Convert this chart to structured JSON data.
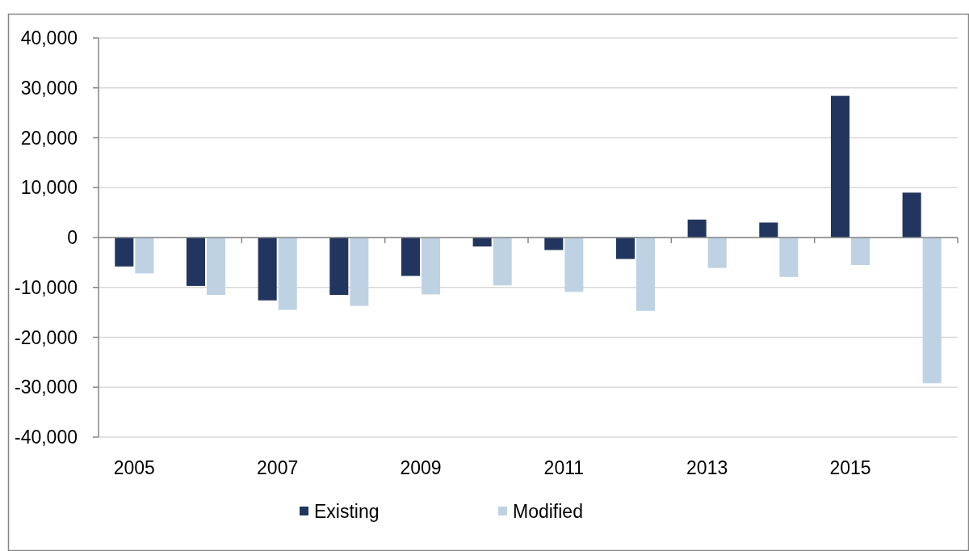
{
  "chart_data": {
    "type": "bar",
    "categories": [
      "2005",
      null,
      "2007",
      null,
      "2009",
      null,
      "2011",
      null,
      "2013",
      null,
      "2015",
      null
    ],
    "series": [
      {
        "name": "Existing",
        "color": "#21355e",
        "values": [
          -5800,
          -9700,
          -12600,
          -11500,
          -7700,
          -1800,
          -2500,
          -4300,
          3600,
          3000,
          28400,
          9000
        ]
      },
      {
        "name": "Modified",
        "color": "#bed2e4",
        "values": [
          -7200,
          -11500,
          -14500,
          -13700,
          -11400,
          -9600,
          -10900,
          -14700,
          -6100,
          -7900,
          -5500,
          -29200
        ]
      }
    ],
    "ylim": [
      -40000,
      40000
    ],
    "yticks": [
      {
        "value": -40000,
        "label": "-40,000"
      },
      {
        "value": -30000,
        "label": "-30,000"
      },
      {
        "value": -20000,
        "label": "-20,000"
      },
      {
        "value": -10000,
        "label": "-10,000"
      },
      0,
      {
        "value": 10000,
        "label": "10,000"
      },
      {
        "value": 20000,
        "label": "20,000"
      },
      {
        "value": 30000,
        "label": "30,000"
      },
      {
        "value": 40000,
        "label": "40,000"
      }
    ],
    "grid": "y",
    "legend": "bottom"
  }
}
